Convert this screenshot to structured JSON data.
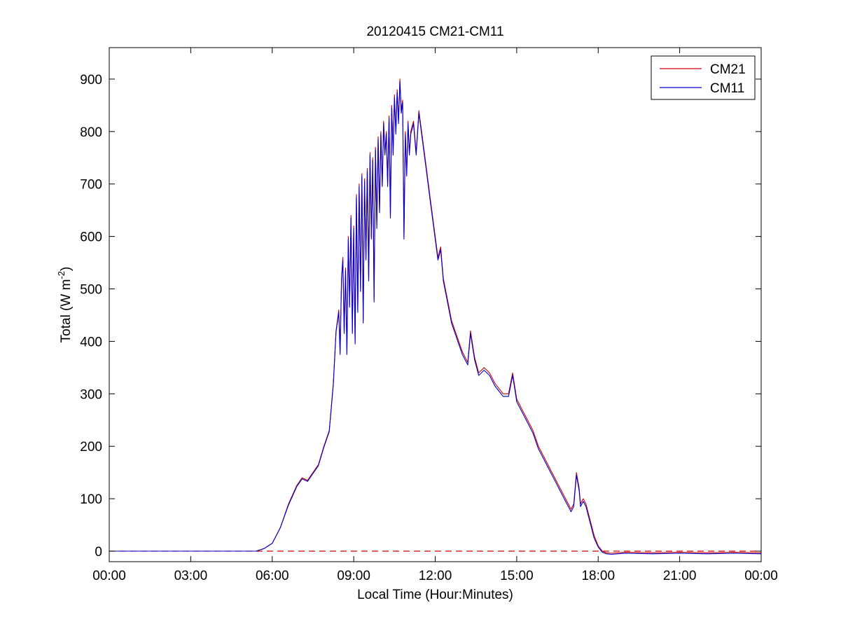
{
  "chart_data": {
    "type": "line",
    "title": "20120415 CM21-CM11",
    "xlabel": "Local Time (Hour:Minutes)",
    "ylabel": {
      "prefix": "Total (W m",
      "superscript": "-2",
      "suffix": ")"
    },
    "xlim": [
      0,
      24
    ],
    "ylim": [
      -20,
      960
    ],
    "x_ticks": [
      {
        "value": 0,
        "label": "00:00"
      },
      {
        "value": 3,
        "label": "03:00"
      },
      {
        "value": 6,
        "label": "06:00"
      },
      {
        "value": 9,
        "label": "09:00"
      },
      {
        "value": 12,
        "label": "12:00"
      },
      {
        "value": 15,
        "label": "15:00"
      },
      {
        "value": 18,
        "label": "18:00"
      },
      {
        "value": 21,
        "label": "21:00"
      },
      {
        "value": 24,
        "label": "00:00"
      }
    ],
    "y_ticks": [
      {
        "value": 0,
        "label": "0"
      },
      {
        "value": 100,
        "label": "100"
      },
      {
        "value": 200,
        "label": "200"
      },
      {
        "value": 300,
        "label": "300"
      },
      {
        "value": 400,
        "label": "400"
      },
      {
        "value": 500,
        "label": "500"
      },
      {
        "value": 600,
        "label": "600"
      },
      {
        "value": 700,
        "label": "700"
      },
      {
        "value": 800,
        "label": "800"
      },
      {
        "value": 900,
        "label": "900"
      }
    ],
    "grid": false,
    "legend_position": "top-right",
    "reference_line": {
      "y": 0,
      "style": "dashed",
      "color": "#cc0000"
    },
    "series": [
      {
        "name": "CM21",
        "color": "#cc0000",
        "x": [
          0,
          3,
          5.4,
          5.7,
          6.0,
          6.3,
          6.6,
          6.9,
          7.1,
          7.3,
          7.5,
          7.7,
          7.9,
          8.1,
          8.25,
          8.35,
          8.45,
          8.5,
          8.55,
          8.6,
          8.65,
          8.7,
          8.75,
          8.8,
          8.85,
          8.9,
          8.95,
          9.0,
          9.05,
          9.1,
          9.15,
          9.2,
          9.25,
          9.3,
          9.35,
          9.4,
          9.45,
          9.5,
          9.55,
          9.6,
          9.65,
          9.7,
          9.75,
          9.8,
          9.85,
          9.9,
          9.95,
          10.0,
          10.05,
          10.1,
          10.15,
          10.2,
          10.25,
          10.3,
          10.35,
          10.4,
          10.45,
          10.5,
          10.55,
          10.6,
          10.65,
          10.7,
          10.75,
          10.8,
          10.85,
          10.9,
          10.95,
          11.0,
          11.05,
          11.1,
          11.2,
          11.3,
          11.4,
          11.5,
          11.6,
          11.7,
          11.8,
          11.9,
          12.0,
          12.1,
          12.2,
          12.3,
          12.45,
          12.6,
          12.8,
          13.0,
          13.2,
          13.3,
          13.45,
          13.6,
          13.8,
          14.0,
          14.2,
          14.35,
          14.5,
          14.7,
          14.85,
          15.0,
          15.2,
          15.4,
          15.6,
          15.8,
          16.0,
          16.2,
          16.4,
          16.6,
          16.8,
          17.0,
          17.1,
          17.2,
          17.3,
          17.35,
          17.45,
          17.55,
          17.7,
          17.85,
          18.0,
          18.15,
          18.3,
          18.5,
          19.0,
          20.0,
          21.0,
          22.0,
          23.0,
          24.0
        ],
        "values": [
          0,
          0,
          0,
          5,
          15,
          45,
          90,
          125,
          140,
          135,
          150,
          165,
          200,
          230,
          320,
          420,
          460,
          380,
          520,
          560,
          420,
          540,
          380,
          600,
          470,
          640,
          420,
          620,
          400,
          680,
          460,
          700,
          500,
          720,
          440,
          710,
          560,
          730,
          520,
          760,
          600,
          750,
          480,
          770,
          620,
          790,
          650,
          800,
          700,
          820,
          760,
          800,
          700,
          830,
          640,
          850,
          760,
          870,
          800,
          880,
          820,
          900,
          840,
          860,
          600,
          800,
          720,
          820,
          760,
          800,
          820,
          760,
          840,
          800,
          760,
          720,
          680,
          640,
          600,
          560,
          580,
          520,
          480,
          440,
          410,
          380,
          360,
          420,
          370,
          340,
          350,
          340,
          320,
          310,
          300,
          300,
          340,
          290,
          270,
          250,
          230,
          200,
          180,
          160,
          140,
          120,
          100,
          80,
          90,
          150,
          120,
          90,
          100,
          90,
          60,
          30,
          10,
          0,
          -3,
          -4,
          -2,
          -3,
          -2,
          -3,
          -2,
          -3
        ]
      },
      {
        "name": "CM11",
        "color": "#0000cc",
        "x": [
          0,
          3,
          5.4,
          5.7,
          6.0,
          6.3,
          6.6,
          6.9,
          7.1,
          7.3,
          7.5,
          7.7,
          7.9,
          8.1,
          8.25,
          8.35,
          8.45,
          8.5,
          8.55,
          8.6,
          8.65,
          8.7,
          8.75,
          8.8,
          8.85,
          8.9,
          8.95,
          9.0,
          9.05,
          9.1,
          9.15,
          9.2,
          9.25,
          9.3,
          9.35,
          9.4,
          9.45,
          9.5,
          9.55,
          9.6,
          9.65,
          9.7,
          9.75,
          9.8,
          9.85,
          9.9,
          9.95,
          10.0,
          10.05,
          10.1,
          10.15,
          10.2,
          10.25,
          10.3,
          10.35,
          10.4,
          10.45,
          10.5,
          10.55,
          10.6,
          10.65,
          10.7,
          10.75,
          10.8,
          10.85,
          10.9,
          10.95,
          11.0,
          11.05,
          11.1,
          11.2,
          11.3,
          11.4,
          11.5,
          11.6,
          11.7,
          11.8,
          11.9,
          12.0,
          12.1,
          12.2,
          12.3,
          12.45,
          12.6,
          12.8,
          13.0,
          13.2,
          13.3,
          13.45,
          13.6,
          13.8,
          14.0,
          14.2,
          14.35,
          14.5,
          14.7,
          14.85,
          15.0,
          15.2,
          15.4,
          15.6,
          15.8,
          16.0,
          16.2,
          16.4,
          16.6,
          16.8,
          17.0,
          17.1,
          17.2,
          17.3,
          17.35,
          17.45,
          17.55,
          17.7,
          17.85,
          18.0,
          18.15,
          18.3,
          18.5,
          19.0,
          20.0,
          21.0,
          22.0,
          23.0,
          24.0
        ],
        "values": [
          0,
          0,
          0,
          5,
          15,
          45,
          88,
          123,
          138,
          133,
          148,
          163,
          198,
          228,
          318,
          418,
          455,
          375,
          515,
          555,
          415,
          535,
          375,
          595,
          465,
          635,
          415,
          615,
          395,
          675,
          455,
          695,
          495,
          715,
          435,
          705,
          555,
          725,
          515,
          755,
          595,
          745,
          475,
          765,
          615,
          785,
          645,
          795,
          695,
          815,
          755,
          795,
          695,
          825,
          635,
          845,
          755,
          865,
          795,
          875,
          815,
          895,
          835,
          855,
          595,
          795,
          715,
          815,
          755,
          795,
          815,
          755,
          835,
          795,
          755,
          715,
          675,
          635,
          595,
          555,
          575,
          515,
          475,
          435,
          405,
          375,
          355,
          415,
          365,
          335,
          345,
          335,
          315,
          305,
          295,
          295,
          335,
          285,
          265,
          245,
          225,
          195,
          175,
          155,
          135,
          115,
          95,
          75,
          85,
          145,
          115,
          85,
          95,
          85,
          55,
          25,
          8,
          -2,
          -5,
          -6,
          -4,
          -5,
          -4,
          -5,
          -4,
          -5
        ]
      }
    ]
  }
}
